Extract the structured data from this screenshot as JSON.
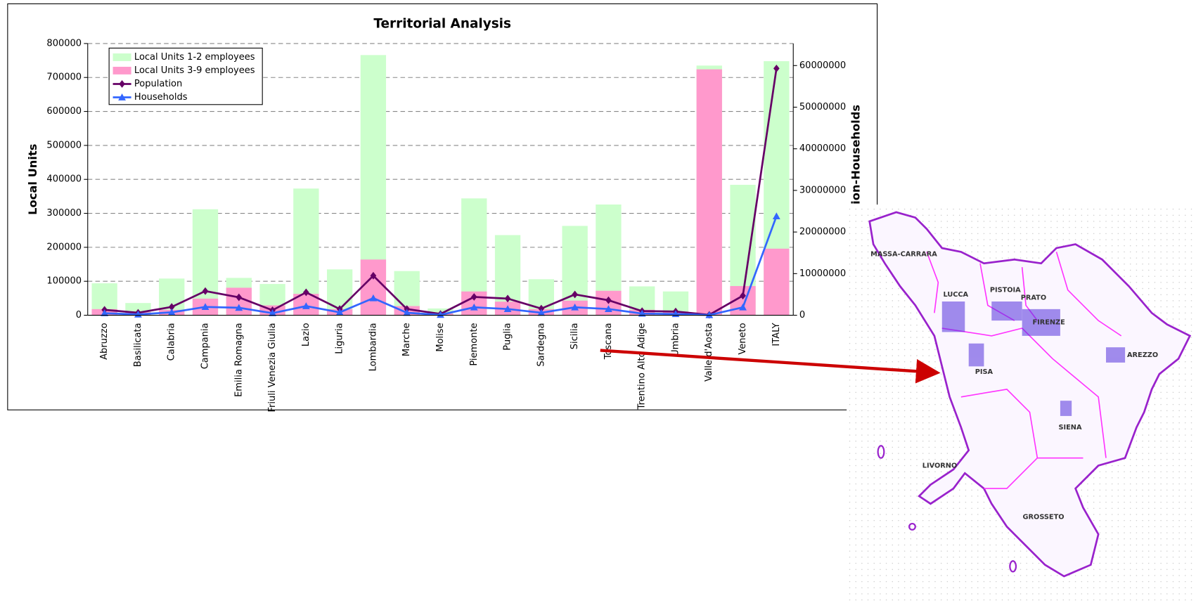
{
  "chart_data": {
    "type": "bar-line",
    "title": "Territorial Analysis",
    "y_label": "Local Units",
    "y2_label": "Population-Households",
    "categories": [
      "Abruzzo",
      "Basilicata",
      "Calabria",
      "Campania",
      "Emilia Romagna",
      "Friuli Venezia Giulia",
      "Lazio",
      "Liguria",
      "Lombardia",
      "Marche",
      "Molise",
      "Piemonte",
      "Puglia",
      "Sardegna",
      "Sicilia",
      "Toscana",
      "Trentino Alto Adige",
      "Umbria",
      "Valle d'Aosta",
      "Veneto",
      "ITALY"
    ],
    "series": [
      {
        "name": "Local Units  1-2 employees",
        "kind": "bar",
        "color": "#ccffcc",
        "values": [
          94000,
          36000,
          108000,
          312000,
          110000,
          92000,
          373000,
          135000,
          766000,
          130000,
          20000,
          344000,
          236000,
          106000,
          263000,
          326000,
          85000,
          70000,
          735000,
          384000,
          748000
        ]
      },
      {
        "name": "Local Units  3-9 employees",
        "kind": "bar",
        "color": "#ff99cc",
        "values": [
          18000,
          9000,
          16000,
          49000,
          81000,
          29000,
          63000,
          18000,
          164000,
          27000,
          5000,
          70000,
          40000,
          18000,
          43000,
          72000,
          16000,
          11000,
          724000,
          86000,
          196000
        ]
      },
      {
        "name": "Population",
        "kind": "line",
        "axis": "y2",
        "marker": "diamond",
        "color": "#660066",
        "values": [
          1300000,
          600000,
          2000000,
          5800000,
          4300000,
          1200000,
          5500000,
          1500000,
          9500000,
          1500000,
          300000,
          4400000,
          4000000,
          1600000,
          5000000,
          3600000,
          1000000,
          900000,
          100000,
          4700000,
          59300000
        ]
      },
      {
        "name": "Households",
        "kind": "line",
        "axis": "y2",
        "marker": "triangle",
        "color": "#3366ff",
        "values": [
          500000,
          200000,
          700000,
          2000000,
          1800000,
          500000,
          2200000,
          700000,
          4100000,
          600000,
          100000,
          1900000,
          1500000,
          600000,
          1900000,
          1500000,
          400000,
          300000,
          50000,
          1900000,
          23800000
        ]
      }
    ],
    "ylim": [
      0,
      800000
    ],
    "yticks": [
      0,
      100000,
      200000,
      300000,
      400000,
      500000,
      600000,
      700000,
      800000
    ],
    "y2lim": [
      0,
      65300000
    ],
    "y2ticks": [
      0,
      10000000,
      20000000,
      30000000,
      40000000,
      50000000,
      60000000
    ],
    "grid": true,
    "legend": "upper left"
  },
  "map": {
    "labels": [
      "MASSA-CARRARA",
      "LUCCA",
      "PISTOIA",
      "PRATO",
      "FIRENZE",
      "AREZZO",
      "PISA",
      "SIENA",
      "LIVORNO",
      "GROSSETO"
    ]
  }
}
